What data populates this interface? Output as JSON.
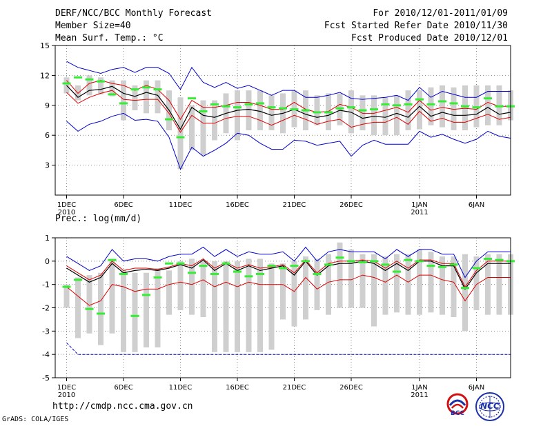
{
  "header": {
    "title": "DERF/NCC/BCC Monthly Forecast",
    "member_size": "Member Size=40",
    "variable": "Mean Surf. Temp.: °C",
    "period": "For 2010/12/01-2011/01/09",
    "fcst_started": "Fcst Started Refer Date 2010/11/30",
    "fcst_produced": "Fcst Produced Date 2010/12/01"
  },
  "footer": {
    "url": "http://cmdp.ncc.cma.gov.cn",
    "grads": "GrADS: COLA/IGES",
    "logo_bcc_text": "BCC",
    "logo_ncc_text": "NCC"
  },
  "colors": {
    "box": "#cfcfcf",
    "mean": "#000000",
    "inner_band": "#dd0000",
    "outer_band": "#0000cc",
    "observed": "#33ee33",
    "grid": "#888888"
  },
  "chart_data": [
    {
      "type": "line",
      "name": "temperature",
      "title": "Mean Surf. Temp.: °C",
      "ylim": [
        0,
        15
      ],
      "xlim": [
        0,
        40
      ],
      "yticks": [
        3,
        6,
        9,
        12,
        15
      ],
      "xtick_days": [
        1,
        6,
        11,
        16,
        21,
        26,
        32,
        37
      ],
      "xtick_labels": [
        "1DEC",
        "6DEC",
        "11DEC",
        "16DEC",
        "21DEC",
        "26DEC",
        "1JAN",
        "6JAN"
      ],
      "year_labels": [
        {
          "day": 1,
          "text": "2010"
        },
        {
          "day": 32,
          "text": "2011"
        }
      ],
      "grid": true,
      "days": [
        1,
        2,
        3,
        4,
        5,
        6,
        7,
        8,
        9,
        10,
        11,
        12,
        13,
        14,
        15,
        16,
        17,
        18,
        19,
        20,
        21,
        22,
        23,
        24,
        25,
        26,
        27,
        28,
        29,
        30,
        31,
        32,
        33,
        34,
        35,
        36,
        37,
        38,
        39,
        40
      ],
      "box_low": [
        10.2,
        9.5,
        10.0,
        10.1,
        9.9,
        7.5,
        8.5,
        8.2,
        8.2,
        6.5,
        2.6,
        4.5,
        4.0,
        5.5,
        6.2,
        5.5,
        6.5,
        6.5,
        6.5,
        6.2,
        6.8,
        6.5,
        7.0,
        6.5,
        7.0,
        6.2,
        6.5,
        6.0,
        6.0,
        6.0,
        6.5,
        6.6,
        7.0,
        6.8,
        6.5,
        6.5,
        6.8,
        7.0,
        7.0,
        7.5
      ],
      "box_high": [
        11.8,
        11.0,
        12.0,
        11.8,
        11.5,
        11.5,
        11.0,
        11.5,
        11.5,
        10.5,
        9.8,
        9.0,
        9.5,
        9.5,
        10.2,
        10.5,
        10.5,
        10.5,
        10.0,
        10.2,
        10.5,
        10.5,
        10.0,
        10.2,
        10.2,
        10.5,
        10.0,
        10.0,
        9.8,
        10.0,
        10.5,
        10.5,
        10.8,
        11.0,
        10.8,
        11.0,
        11.0,
        11.0,
        11.0,
        10.5
      ],
      "mean": [
        11.0,
        9.8,
        10.5,
        10.6,
        10.9,
        10.2,
        9.9,
        10.3,
        10.0,
        8.5,
        6.6,
        8.8,
        8.0,
        7.8,
        8.2,
        8.5,
        8.6,
        8.4,
        8.0,
        8.2,
        8.6,
        8.1,
        7.8,
        8.0,
        8.5,
        8.3,
        7.7,
        7.9,
        7.8,
        8.2,
        7.8,
        8.9,
        7.9,
        8.3,
        8.0,
        8.0,
        8.1,
        8.8,
        8.1,
        8.3
      ],
      "inner_hi": [
        11.5,
        10.2,
        11.2,
        11.5,
        11.2,
        11.0,
        10.5,
        11.0,
        10.6,
        9.5,
        7.6,
        9.5,
        8.8,
        8.8,
        9.0,
        9.3,
        9.3,
        9.0,
        8.6,
        8.6,
        9.3,
        8.6,
        8.3,
        8.4,
        9.1,
        8.8,
        8.2,
        8.2,
        8.5,
        8.8,
        8.3,
        9.5,
        8.5,
        8.8,
        8.6,
        8.7,
        8.6,
        9.3,
        8.9,
        8.9
      ],
      "inner_lo": [
        10.3,
        9.2,
        9.8,
        10.2,
        10.5,
        9.6,
        9.5,
        9.6,
        9.6,
        8.2,
        6.3,
        8.0,
        7.2,
        7.2,
        7.7,
        7.9,
        7.9,
        7.5,
        7.0,
        7.5,
        8.0,
        7.6,
        7.1,
        7.4,
        7.6,
        6.8,
        7.1,
        7.3,
        7.3,
        7.8,
        7.1,
        8.4,
        7.4,
        7.7,
        7.3,
        7.3,
        7.7,
        8.1,
        7.6,
        7.8
      ],
      "outer_hi": [
        13.4,
        12.8,
        12.5,
        12.2,
        12.6,
        12.8,
        12.3,
        12.8,
        12.8,
        12.2,
        10.6,
        12.8,
        11.3,
        10.8,
        11.3,
        10.7,
        11.0,
        10.5,
        10.0,
        10.5,
        10.5,
        9.8,
        9.8,
        10.0,
        10.3,
        9.7,
        9.6,
        9.7,
        9.8,
        10.0,
        9.5,
        10.8,
        9.8,
        10.4,
        10.1,
        9.8,
        9.8,
        10.4,
        10.4,
        10.4
      ],
      "outer_lo": [
        7.4,
        6.4,
        7.1,
        7.4,
        7.9,
        8.2,
        7.5,
        7.6,
        7.4,
        5.8,
        2.6,
        4.8,
        3.9,
        4.5,
        5.2,
        6.2,
        6.0,
        5.2,
        4.6,
        4.6,
        5.5,
        5.4,
        5.0,
        5.2,
        5.4,
        3.9,
        5.0,
        5.5,
        5.1,
        5.1,
        5.1,
        6.4,
        5.8,
        6.1,
        5.6,
        5.2,
        5.6,
        6.4,
        5.9,
        5.7
      ],
      "observed": [
        11.2,
        11.8,
        11.6,
        11.4,
        10.1,
        9.2,
        10.6,
        10.8,
        10.6,
        7.6,
        5.8,
        9.7,
        8.4,
        9.1,
        8.9,
        8.8,
        9.1,
        9.2,
        8.8,
        8.7,
        8.6,
        8.5,
        8.3,
        8.3,
        8.7,
        8.8,
        8.5,
        8.6,
        9.1,
        9.0,
        9.1,
        9.6,
        9.1,
        9.4,
        9.2,
        8.9,
        8.8,
        9.7,
        8.9,
        8.9
      ]
    },
    {
      "type": "line",
      "name": "precipitation",
      "title": "Prec.: log(mm/d)",
      "ylim": [
        -5,
        1
      ],
      "xlim": [
        0,
        40
      ],
      "yticks": [
        -5,
        -4,
        -3,
        -2,
        -1,
        0,
        1
      ],
      "xtick_days": [
        1,
        6,
        11,
        16,
        21,
        26,
        32,
        37
      ],
      "xtick_labels": [
        "1DEC",
        "6DEC",
        "11DEC",
        "16DEC",
        "21DEC",
        "26DEC",
        "1JAN",
        "6JAN"
      ],
      "year_labels": [
        {
          "day": 1,
          "text": "2010"
        },
        {
          "day": 32,
          "text": "2011"
        }
      ],
      "grid": true,
      "days": [
        1,
        2,
        3,
        4,
        5,
        6,
        7,
        8,
        9,
        10,
        11,
        12,
        13,
        14,
        15,
        16,
        17,
        18,
        19,
        20,
        21,
        22,
        23,
        24,
        25,
        26,
        27,
        28,
        29,
        30,
        31,
        32,
        33,
        34,
        35,
        36,
        37,
        38,
        39,
        40
      ],
      "box_low": [
        -2.0,
        -3.3,
        -3.1,
        -3.6,
        -3.1,
        -3.9,
        -3.9,
        -3.7,
        -3.7,
        -2.3,
        -2.1,
        -2.3,
        -2.4,
        -3.9,
        -3.9,
        -3.9,
        -3.9,
        -3.9,
        -3.8,
        -2.5,
        -2.8,
        -2.5,
        -2.1,
        -2.3,
        -2.0,
        -2.0,
        -2.0,
        -2.8,
        -2.3,
        -2.2,
        -2.3,
        -2.3,
        -2.2,
        -2.3,
        -2.4,
        -3.0,
        -2.1,
        -2.3,
        -2.3,
        -2.3
      ],
      "box_high": [
        -1.0,
        -0.7,
        -0.6,
        -0.5,
        0.1,
        -0.4,
        -0.5,
        -0.5,
        -0.3,
        -0.4,
        0.0,
        0.1,
        0.0,
        0.0,
        0.0,
        0.0,
        0.1,
        0.1,
        -0.1,
        -0.1,
        0.0,
        0.2,
        0.1,
        0.3,
        0.8,
        0.5,
        0.3,
        0.3,
        0.2,
        0.3,
        0.3,
        0.5,
        0.4,
        0.2,
        0.2,
        0.3,
        0.2,
        0.3,
        0.3,
        0.3
      ],
      "mean": [
        -0.3,
        -0.6,
        -0.9,
        -0.7,
        -0.1,
        -0.5,
        -0.4,
        -0.35,
        -0.4,
        -0.3,
        -0.15,
        -0.3,
        0.05,
        -0.4,
        -0.1,
        -0.4,
        -0.2,
        -0.4,
        -0.3,
        -0.2,
        -0.6,
        0.0,
        -0.6,
        -0.2,
        -0.1,
        -0.1,
        0.0,
        -0.1,
        -0.4,
        -0.1,
        -0.4,
        0.0,
        0.0,
        -0.2,
        -0.2,
        -1.2,
        -0.5,
        -0.1,
        -0.1,
        -0.1
      ],
      "inner_hi": [
        -0.2,
        -0.5,
        -0.8,
        -0.6,
        0.0,
        -0.4,
        -0.3,
        -0.3,
        -0.35,
        -0.25,
        -0.1,
        -0.2,
        0.1,
        -0.3,
        -0.05,
        -0.3,
        -0.15,
        -0.3,
        -0.25,
        -0.15,
        -0.5,
        0.05,
        -0.5,
        -0.1,
        0.0,
        0.0,
        0.05,
        0.0,
        -0.3,
        0.0,
        -0.3,
        0.05,
        0.05,
        -0.1,
        -0.1,
        -1.1,
        -0.4,
        0.0,
        0.0,
        0.0
      ],
      "inner_lo": [
        -1.1,
        -1.5,
        -1.9,
        -1.7,
        -1.0,
        -1.1,
        -1.3,
        -1.2,
        -1.2,
        -1.0,
        -0.9,
        -1.0,
        -0.8,
        -1.1,
        -0.9,
        -1.1,
        -0.9,
        -1.0,
        -1.0,
        -1.0,
        -1.3,
        -0.7,
        -1.2,
        -0.9,
        -0.8,
        -0.8,
        -0.6,
        -0.7,
        -0.9,
        -0.6,
        -0.9,
        -0.6,
        -0.6,
        -0.8,
        -0.9,
        -1.7,
        -1.0,
        -0.7,
        -0.7,
        -0.7
      ],
      "outer_hi": [
        0.2,
        -0.1,
        -0.4,
        -0.2,
        0.5,
        0.0,
        0.1,
        0.1,
        0.0,
        0.2,
        0.3,
        0.3,
        0.6,
        0.2,
        0.5,
        0.2,
        0.4,
        0.3,
        0.3,
        0.4,
        0.0,
        0.6,
        0.0,
        0.4,
        0.5,
        0.4,
        0.4,
        0.4,
        0.1,
        0.5,
        0.2,
        0.5,
        0.5,
        0.3,
        0.3,
        -0.7,
        0.0,
        0.4,
        0.4,
        0.4
      ],
      "outer_lo": [
        -3.5,
        -4.0,
        -4.0,
        -4.0,
        -4.0,
        -4.0,
        -4.0,
        -4.0,
        -4.0,
        -4.0,
        -4.0,
        -4.0,
        -4.0,
        -4.0,
        -4.0,
        -4.0,
        -4.0,
        -4.0,
        -4.0,
        -4.0,
        -4.0,
        -4.0,
        -4.0,
        -4.0,
        -4.0,
        -4.0,
        -4.0,
        -4.0,
        -4.0,
        -4.0,
        -4.0,
        -4.0,
        -4.0,
        -4.0,
        -4.0,
        -4.0,
        -4.0,
        -4.0,
        -4.0,
        -4.0
      ],
      "observed": [
        -1.1,
        -0.8,
        -2.05,
        -2.25,
        0.05,
        -0.55,
        -2.35,
        -1.45,
        -0.7,
        -0.1,
        -0.1,
        -0.5,
        -0.2,
        -0.55,
        -0.1,
        -0.45,
        -0.65,
        -0.55,
        -0.2,
        -0.3,
        -0.2,
        0.0,
        -0.55,
        -0.15,
        0.15,
        0.0,
        -0.05,
        0.0,
        -0.15,
        -0.45,
        0.05,
        0.0,
        -0.2,
        -0.25,
        -0.15,
        -1.15,
        -0.3,
        0.1,
        0.05,
        0.0
      ]
    }
  ]
}
